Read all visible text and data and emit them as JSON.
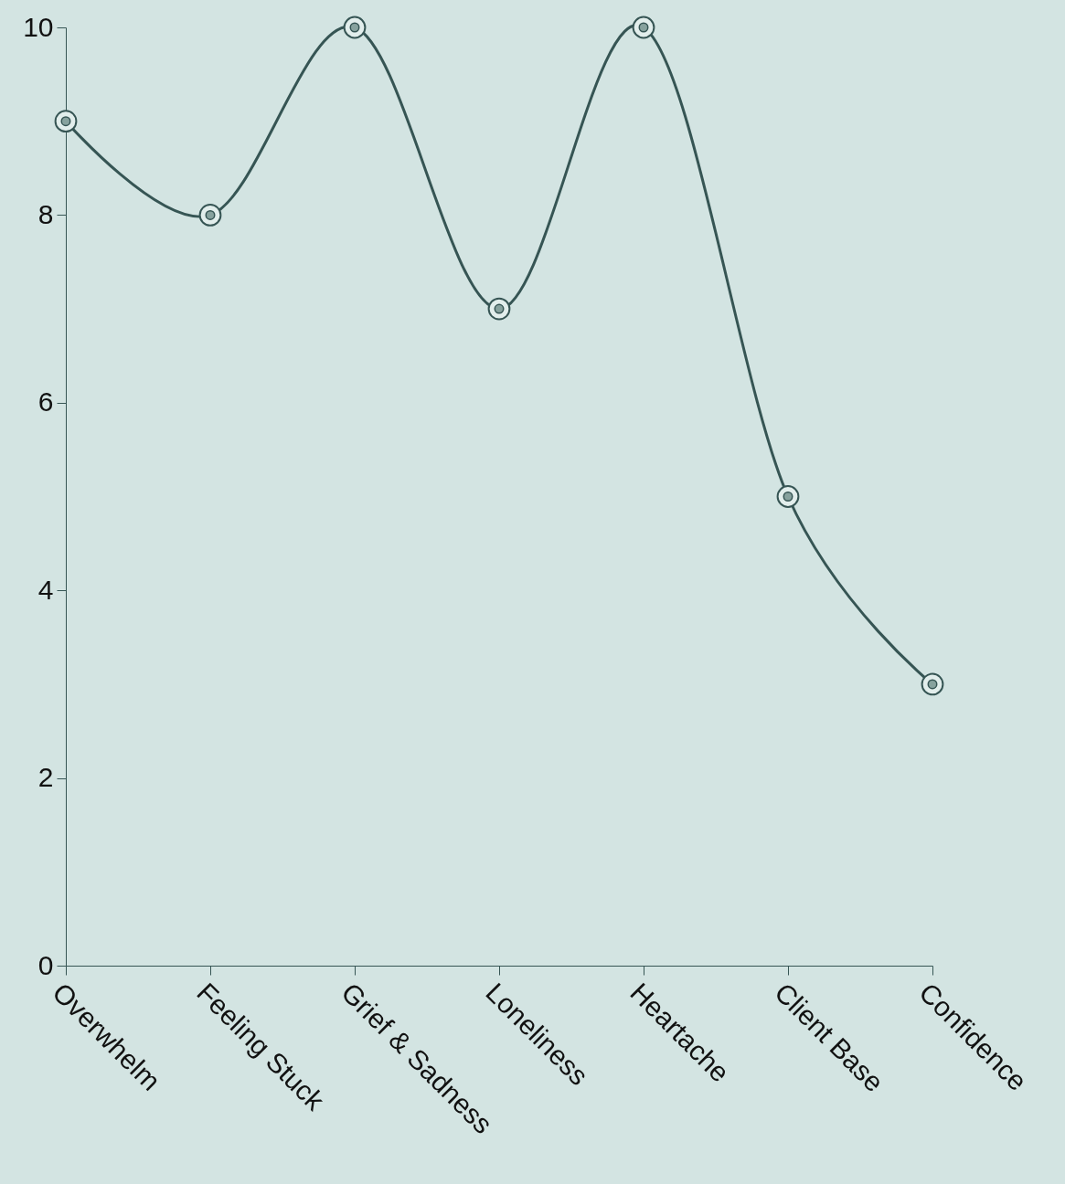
{
  "chart_data": {
    "type": "line",
    "categories": [
      "Overwhelm",
      "Feeling Stuck",
      "Grief & Sadness",
      "Loneliness",
      "Heartache",
      "Client Base",
      "Confidence"
    ],
    "series": [
      {
        "color": "#365554",
        "values": [
          9,
          8,
          10,
          7,
          10,
          5,
          3
        ]
      }
    ],
    "ylim": [
      0,
      10
    ],
    "yticks": [
      0,
      2,
      4,
      6,
      8,
      10
    ],
    "grid": false,
    "legend": false,
    "marker": "circle",
    "line_style": "solid"
  }
}
